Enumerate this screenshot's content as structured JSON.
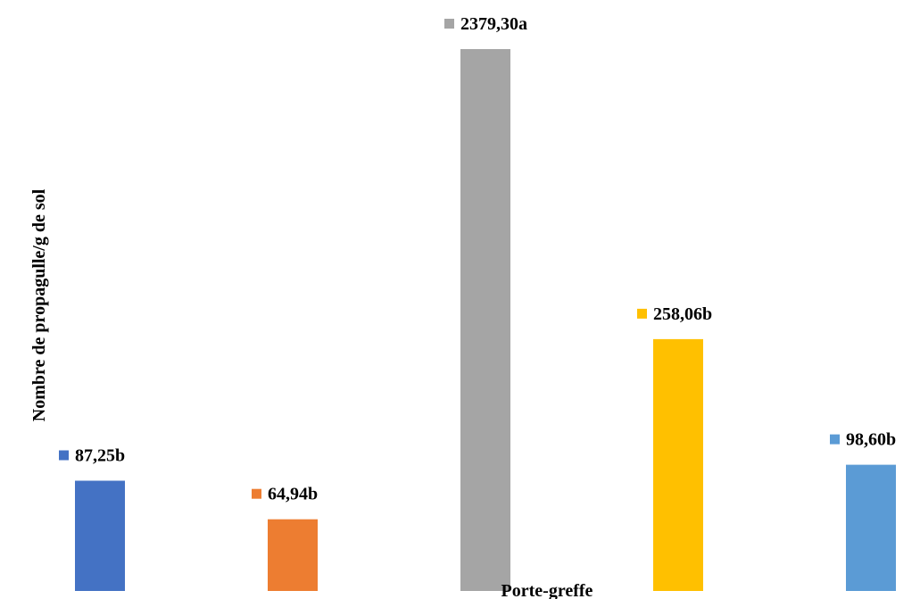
{
  "chart_data": {
    "type": "bar",
    "xlabel": "Porte-greffe",
    "ylabel": "Nombre de propagulle/g de sol",
    "ylim": [
      0,
      2379.3
    ],
    "y_scale": "log",
    "grid": false,
    "values": [
      87.25,
      64.94,
      2379.3,
      258.06,
      98.6
    ],
    "data_labels": [
      "87,25b",
      "64,94b",
      "2379,30a",
      "258,06b",
      "98,60b"
    ],
    "colors": [
      "#4472C4",
      "#ED7D31",
      "#A5A5A5",
      "#FFC000",
      "#5B9BD5"
    ]
  }
}
